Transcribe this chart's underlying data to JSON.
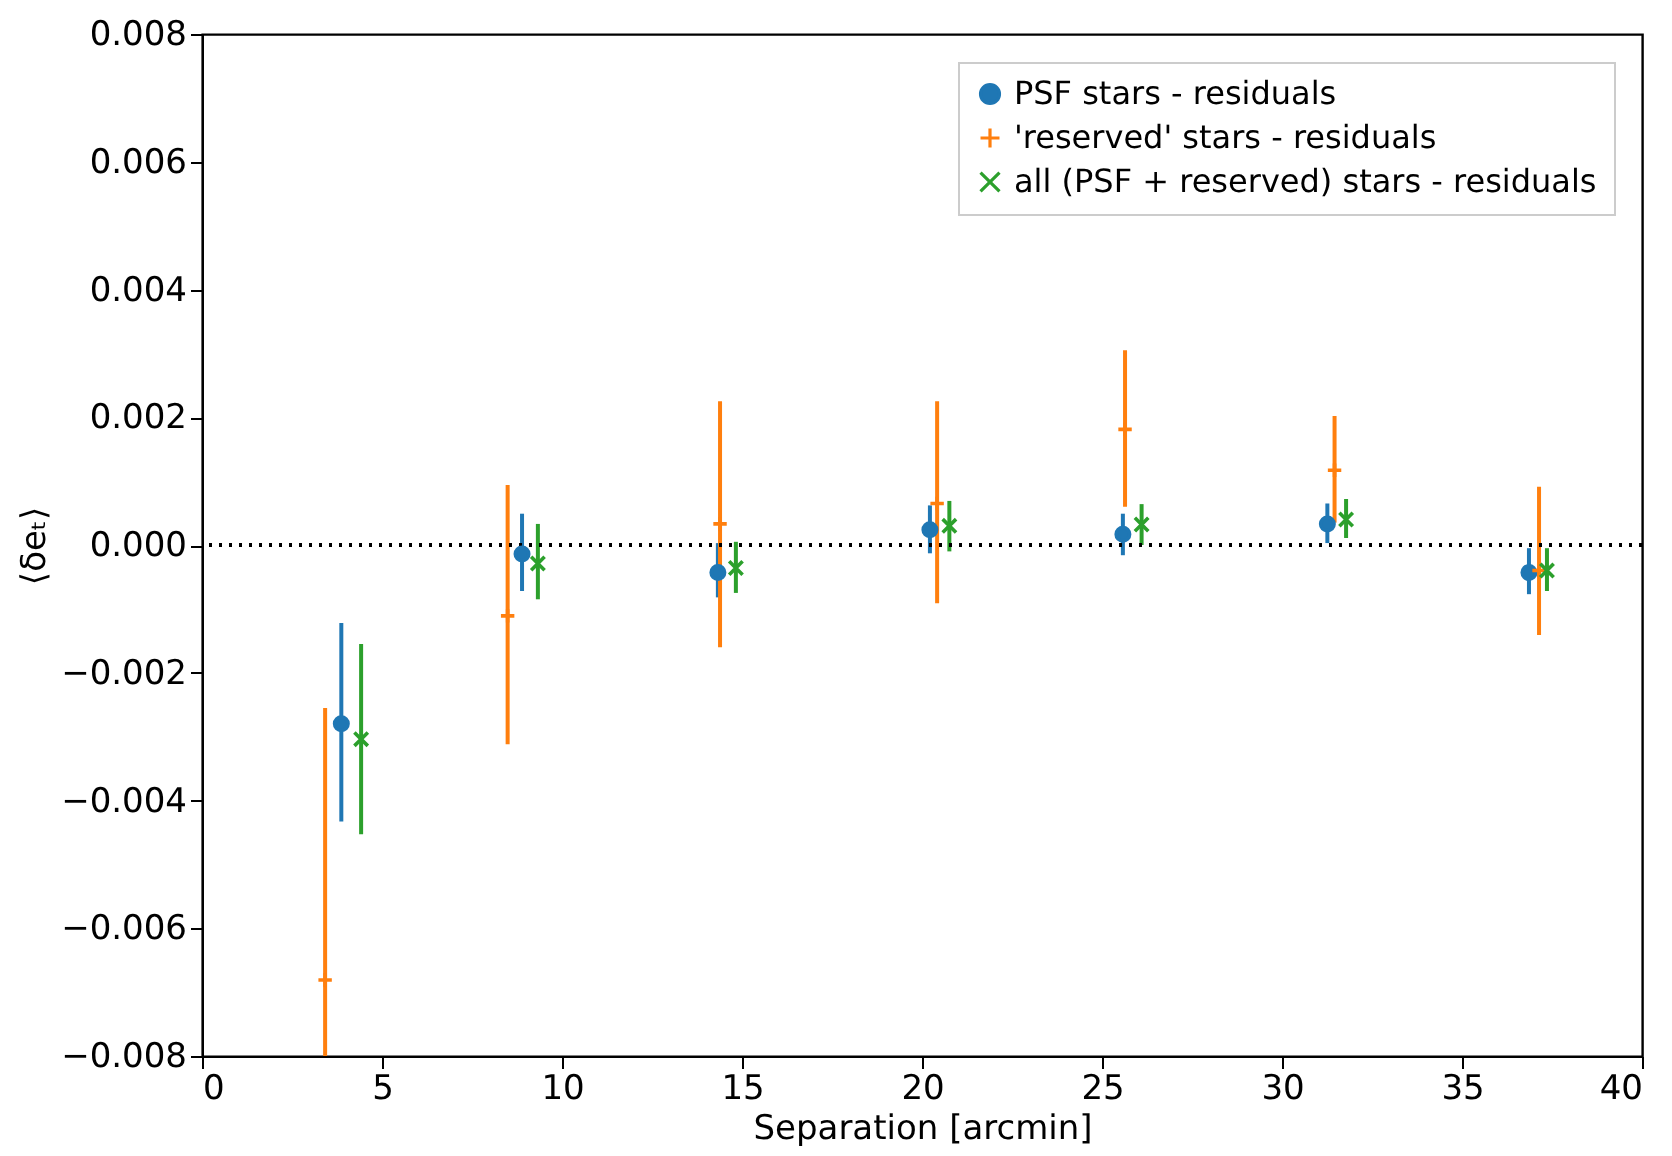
{
  "chart_data": {
    "type": "scatter",
    "xlabel": "Separation [arcmin]",
    "ylabel": "⟨δeₜ⟩",
    "xlim": [
      0,
      40
    ],
    "xticks": [
      0,
      5,
      10,
      15,
      20,
      25,
      30,
      35,
      40
    ],
    "ylim": [
      -0.008,
      0.008
    ],
    "yticks": [
      {
        "value": -0.008,
        "label": "−0.008"
      },
      {
        "value": -0.006,
        "label": "−0.006"
      },
      {
        "value": -0.004,
        "label": "−0.004"
      },
      {
        "value": -0.002,
        "label": "−0.002"
      },
      {
        "value": 0,
        "label": "0.000"
      },
      {
        "value": 0.002,
        "label": "0.002"
      },
      {
        "value": 0.004,
        "label": "0.004"
      },
      {
        "value": 0.006,
        "label": "0.006"
      },
      {
        "value": 0.008,
        "label": "0.008"
      }
    ],
    "grid": false,
    "legend": "top right",
    "ref_lines": [
      {
        "axis": "y",
        "value": 0,
        "color": "#000000",
        "line_style": "dotted"
      }
    ],
    "series": [
      {
        "name": "PSF stars - residuals",
        "color": "#1f77b4",
        "marker": "circle",
        "x": [
          3.87,
          8.89,
          14.33,
          20.22,
          25.58,
          31.26,
          36.86
        ],
        "values": [
          -0.0028,
          -0.00014,
          -0.00043,
          0.00024,
          0.00017,
          0.00033,
          -0.00043
        ],
        "errors": [
          [
            -0.00433,
            -0.00122
          ],
          [
            -0.00072,
            0.00049
          ],
          [
            -0.00082,
            3e-05
          ],
          [
            -0.00013,
            0.00062
          ],
          [
            -0.00016,
            0.00049
          ],
          [
            3e-05,
            0.00065
          ],
          [
            -0.00077,
            -5e-05
          ]
        ]
      },
      {
        "name": "'reserved' stars - residuals",
        "color": "#ff7f0e",
        "marker": "cross",
        "x": [
          3.42,
          8.49,
          14.39,
          20.42,
          25.64,
          31.46,
          37.14
        ],
        "values": [
          -0.00681,
          -0.00111,
          0.00033,
          0.00065,
          0.00181,
          0.00117,
          -0.0004
        ],
        "errors": [
          [
            -0.008,
            -0.00255
          ],
          [
            -0.00312,
            0.00094
          ],
          [
            -0.0016,
            0.00225
          ],
          [
            -0.00091,
            0.00225
          ],
          [
            0.0006,
            0.00305
          ],
          [
            0.00035,
            0.00202
          ],
          [
            -0.00141,
            0.00091
          ]
        ]
      },
      {
        "name": " all (PSF + reserved) stars - residuals",
        "color": "#2ca02c",
        "marker": "x",
        "x": [
          4.42,
          9.33,
          14.83,
          20.76,
          26.1,
          31.78,
          37.36
        ],
        "values": [
          -0.00304,
          -0.00029,
          -0.00036,
          0.0003,
          0.00032,
          0.0004,
          -0.0004
        ],
        "errors": [
          [
            -0.00453,
            -0.00155
          ],
          [
            -0.00085,
            0.00033
          ],
          [
            -0.00075,
            5e-05
          ],
          [
            -0.0001,
            0.00069
          ],
          [
            0.0,
            0.00064
          ],
          [
            0.00011,
            0.00072
          ],
          [
            -0.00072,
            -5e-05
          ]
        ]
      }
    ]
  }
}
